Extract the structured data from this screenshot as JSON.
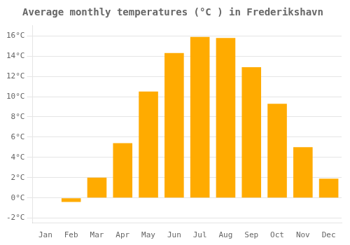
{
  "chart_data": {
    "type": "bar",
    "title": "Average monthly temperatures (°C ) in Frederikshavn",
    "categories": [
      "Jan",
      "Feb",
      "Mar",
      "Apr",
      "May",
      "Jun",
      "Jul",
      "Aug",
      "Sep",
      "Oct",
      "Nov",
      "Dec"
    ],
    "values": [
      0.0,
      -0.4,
      2.0,
      5.4,
      10.5,
      14.3,
      15.9,
      15.8,
      12.9,
      9.3,
      5.0,
      1.9
    ],
    "color": "#FFAB00",
    "ylim": [
      -2.5,
      17
    ],
    "yticks": [
      {
        "value": -2,
        "label": "-2°C"
      },
      {
        "value": 0,
        "label": "0°C"
      },
      {
        "value": 2,
        "label": "2°C"
      },
      {
        "value": 4,
        "label": "4°C"
      },
      {
        "value": 6,
        "label": "6°C"
      },
      {
        "value": 8,
        "label": "8°C"
      },
      {
        "value": 10,
        "label": "10°C"
      },
      {
        "value": 12,
        "label": "12°C"
      },
      {
        "value": 14,
        "label": "14°C"
      },
      {
        "value": 16,
        "label": "16°C"
      }
    ],
    "grid": true
  }
}
